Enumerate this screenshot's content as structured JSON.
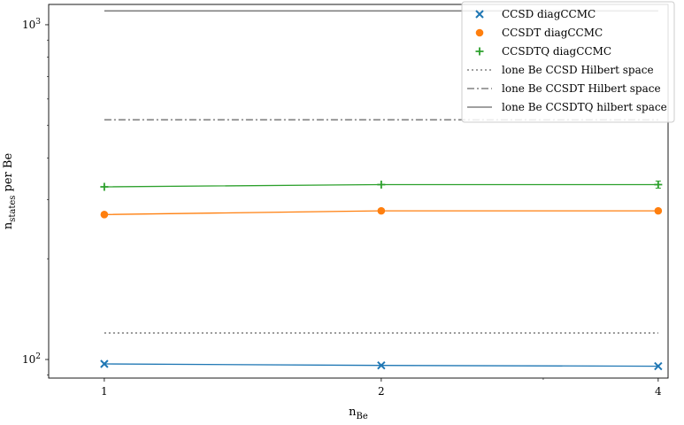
{
  "chart_data": {
    "type": "line",
    "title": "",
    "xlabel": "n",
    "xlabel_sub": "Be",
    "ylabel": "n",
    "ylabel_sub": "states",
    "ylabel_suffix": " per Be",
    "yscale": "log",
    "ylim": [
      88,
      1150
    ],
    "xlim": [
      0.87,
      4.1
    ],
    "x_ticks": [
      1,
      2,
      4
    ],
    "x_tick_labels": [
      "1",
      "2",
      "4"
    ],
    "y_tick_labels": [
      {
        "value": 100,
        "base": "10",
        "exp": "2"
      },
      {
        "value": 1000,
        "base": "10",
        "exp": "3"
      }
    ],
    "grid": false,
    "legend_position": "top-right",
    "x": [
      1,
      2,
      4
    ],
    "series": [
      {
        "name": "CCSD diagCCMC",
        "kind": "data",
        "marker": "x",
        "color": "#1f77b4",
        "values": [
          97,
          96,
          95.5
        ]
      },
      {
        "name": "CCSDT diagCCMC",
        "kind": "data",
        "marker": "o",
        "color": "#ff7f0e",
        "values": [
          271,
          278,
          278
        ]
      },
      {
        "name": "CCSDTQ diagCCMC",
        "kind": "data",
        "marker": "+",
        "color": "#2ca02c",
        "values": [
          328,
          333,
          333
        ]
      },
      {
        "name": "lone Be CCSD Hilbert space",
        "kind": "ref",
        "dash": "2,3",
        "color": "#808080",
        "values": [
          120,
          120,
          120
        ]
      },
      {
        "name": "lone Be CCSDT Hilbert space",
        "kind": "ref",
        "dash": "8,3,2,3",
        "color": "#808080",
        "values": [
          520,
          520,
          520
        ]
      },
      {
        "name": "lone Be CCSDTQ hilbert space",
        "kind": "ref",
        "dash": "",
        "color": "#808080",
        "values": [
          1100,
          1100,
          1100
        ]
      }
    ]
  }
}
